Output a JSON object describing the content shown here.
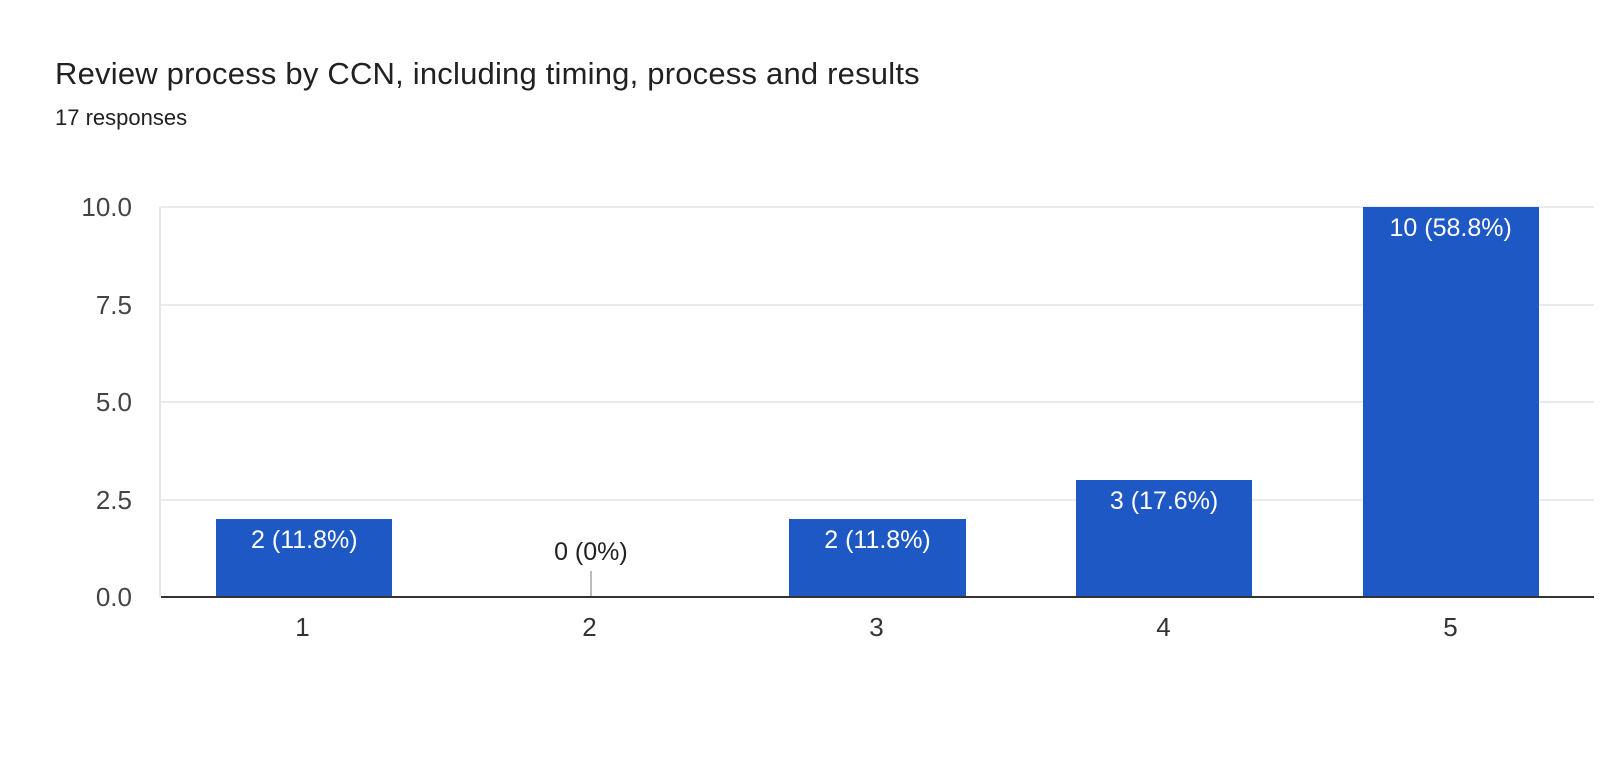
{
  "chart_data": {
    "type": "bar",
    "title": "Review process by CCN, including timing, process and results",
    "subtitle": "17 responses",
    "categories": [
      "1",
      "2",
      "3",
      "4",
      "5"
    ],
    "values": [
      2,
      0,
      2,
      3,
      10
    ],
    "bar_labels": [
      "2 (11.8%)",
      "0 (0%)",
      "2 (11.8%)",
      "3 (17.6%)",
      "10 (58.8%)"
    ],
    "ylim": [
      0,
      10
    ],
    "y_ticks": [
      "10.0",
      "7.5",
      "5.0",
      "2.5",
      "0.0"
    ],
    "xlabel": "",
    "ylabel": "",
    "grid": true,
    "legend": "none",
    "colors": {
      "bar": "#1e58c4",
      "bar_label": "#ffffff",
      "zero_label": "#212121",
      "zero_stem": "#bdbdbd",
      "gridline": "#ebebeb",
      "axis_line": "#333333",
      "y_tick_label": "#444444",
      "x_tick_label": "#333333",
      "title": "#212121",
      "background": "#ffffff"
    }
  }
}
